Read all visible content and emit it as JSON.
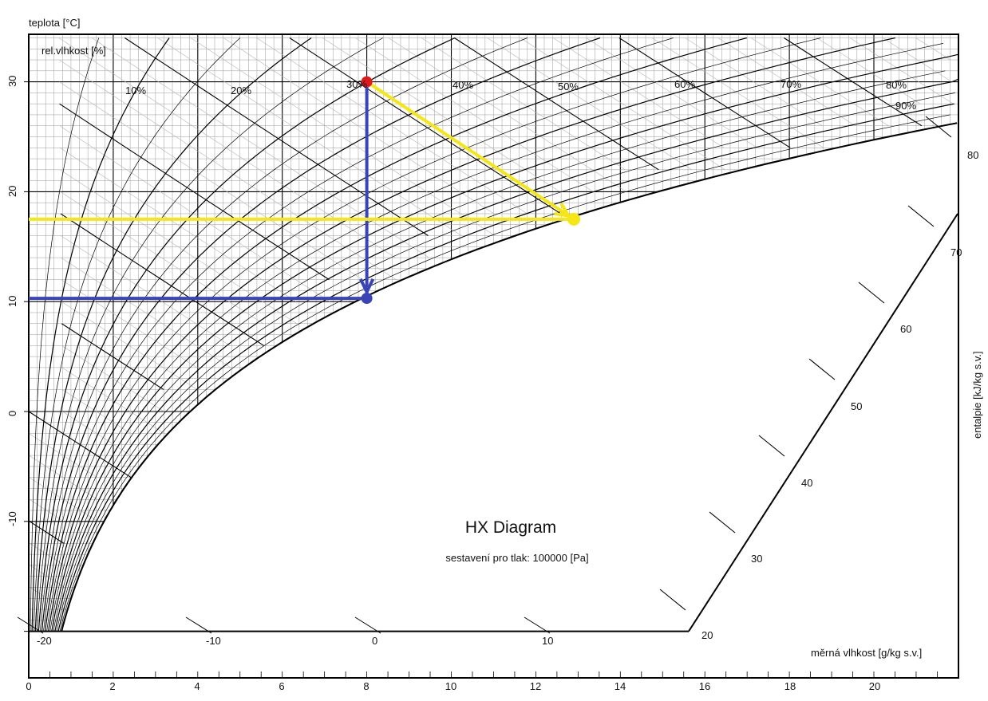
{
  "title": "HX Diagram",
  "subtitle": "sestavení pro tlak: 100000 [Pa]",
  "axes": {
    "temperature_label": "teplota [°C]",
    "humidity_label": "rel.vlhkost [%]",
    "moisture_label": "měrná vlhkost [g/kg s.v.]",
    "enthalpy_label": "entalpie [kJ/kg s.v.]"
  },
  "temperature_ticks": [
    "30",
    "20",
    "10",
    "0",
    "-10"
  ],
  "moisture_ticks": [
    "0",
    "2",
    "4",
    "6",
    "8",
    "10",
    "12",
    "14",
    "16",
    "18",
    "20"
  ],
  "enthalpy_ticks": [
    "80",
    "70",
    "60",
    "50",
    "40",
    "30",
    "20"
  ],
  "bottom_scale_ticks": [
    "-20",
    "-10",
    "0",
    "10"
  ],
  "rh_labels": [
    "10%",
    "20%",
    "30%",
    "40%",
    "50%",
    "60%",
    "70%",
    "80%",
    "90%"
  ],
  "chart_data": {
    "type": "diagram",
    "pressure_pa": 100000,
    "temperature_range_c": [
      -20,
      34
    ],
    "moisture_range_g_per_kg": [
      0,
      22
    ],
    "relative_humidity_curves_pct": [
      10,
      20,
      30,
      40,
      50,
      60,
      70,
      80,
      90,
      100
    ],
    "points": [
      {
        "color": "red",
        "t_c": 30,
        "x_g_per_kg": 8.0
      },
      {
        "color": "yellow",
        "t_c": 17.5,
        "x_g_per_kg": 12.9
      },
      {
        "color": "blue",
        "t_c": 10.3,
        "x_g_per_kg": 8.0
      }
    ],
    "process_lines": [
      {
        "color": "blue",
        "from": {
          "t_c": 30,
          "x_g_per_kg": 8.0
        },
        "to": {
          "t_c": 10.3,
          "x_g_per_kg": 8.0
        },
        "arrow": true
      },
      {
        "color": "blue",
        "from": {
          "t_c": 10.3,
          "x_g_per_kg": 8.0
        },
        "to": {
          "t_c": 10.3,
          "x_g_per_kg": 0
        },
        "arrow": false
      },
      {
        "color": "yellow",
        "from": {
          "t_c": 30,
          "x_g_per_kg": 8.0
        },
        "to": {
          "t_c": 17.5,
          "x_g_per_kg": 12.9
        },
        "arrow": true
      },
      {
        "color": "yellow",
        "from": {
          "t_c": 17.5,
          "x_g_per_kg": 12.9
        },
        "to": {
          "t_c": 17.5,
          "x_g_per_kg": 0
        },
        "arrow": false
      }
    ]
  },
  "colors": {
    "red": "#e01a1a",
    "yellow": "#f5e614",
    "blue": "#3a44b8",
    "grid": "#9a9a9a",
    "ink": "#000000"
  }
}
